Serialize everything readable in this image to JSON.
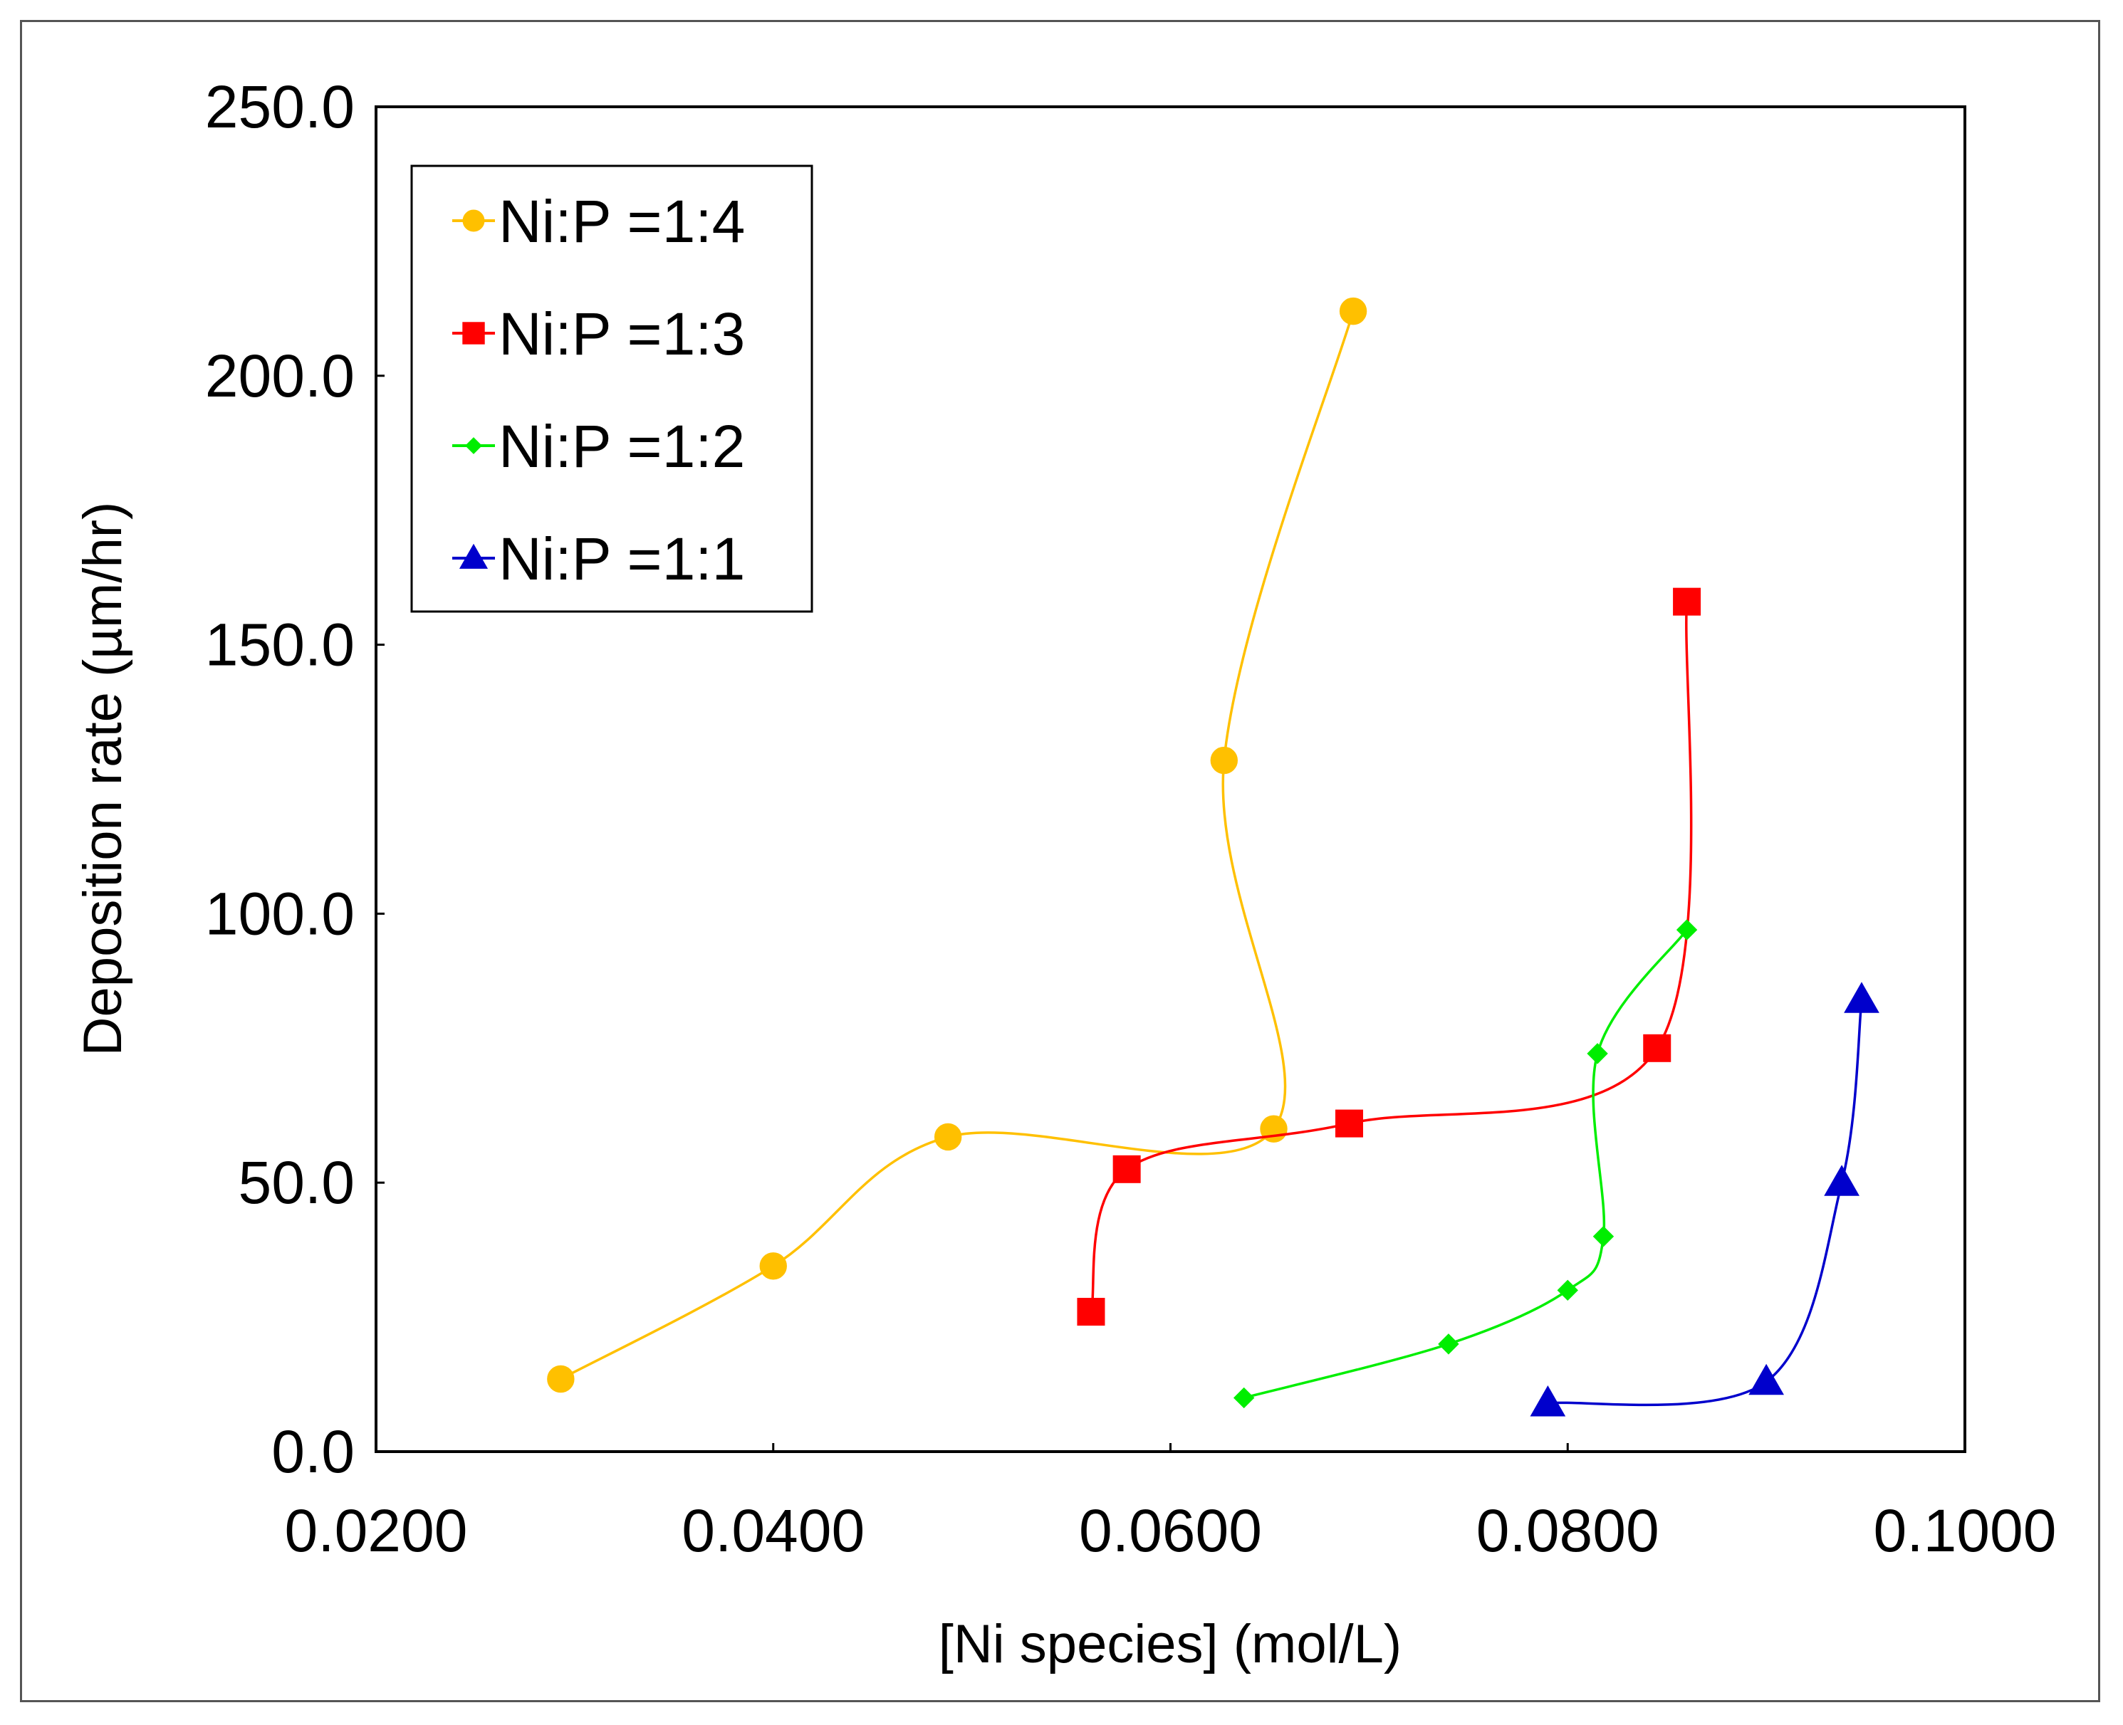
{
  "chart_data": {
    "type": "line",
    "title": "",
    "xlabel": "[Ni species] (mol/L)",
    "ylabel": "Deposition rate (µm/hr)",
    "xlim": [
      0.02,
      0.1
    ],
    "ylim": [
      0,
      250
    ],
    "x_ticks": [
      "0.0200",
      "0.0400",
      "0.0600",
      "0.0800",
      "0.1000"
    ],
    "y_ticks": [
      "0.0",
      "50.0",
      "100.0",
      "150.0",
      "200.0",
      "250.0"
    ],
    "legend_position": "top-left",
    "series": [
      {
        "name": "Ni:P =1:4",
        "color": "#FFC000",
        "marker": "circle",
        "points": [
          [
            0.0293,
            13.5
          ],
          [
            0.04,
            34.5
          ],
          [
            0.0488,
            58.5
          ],
          [
            0.0652,
            60.0
          ],
          [
            0.0627,
            128.5
          ],
          [
            0.0692,
            212.0
          ]
        ]
      },
      {
        "name": "Ni:P =1:3",
        "color": "#FF0000",
        "marker": "square",
        "points": [
          [
            0.056,
            26.0
          ],
          [
            0.0578,
            52.5
          ],
          [
            0.069,
            61.0
          ],
          [
            0.0845,
            75.0
          ],
          [
            0.086,
            158.0
          ]
        ]
      },
      {
        "name": "Ni:P =1:2",
        "color": "#00EE00",
        "marker": "diamond",
        "points": [
          [
            0.0637,
            10.0
          ],
          [
            0.074,
            20.0
          ],
          [
            0.08,
            30.0
          ],
          [
            0.0818,
            40.0
          ],
          [
            0.0815,
            74.0
          ],
          [
            0.086,
            97.0
          ]
        ]
      },
      {
        "name": "Ni:P =1:1",
        "color": "#0000CC",
        "marker": "triangle",
        "points": [
          [
            0.079,
            9.0
          ],
          [
            0.09,
            13.0
          ],
          [
            0.0938,
            50.0
          ],
          [
            0.0948,
            84.0
          ]
        ]
      }
    ]
  }
}
